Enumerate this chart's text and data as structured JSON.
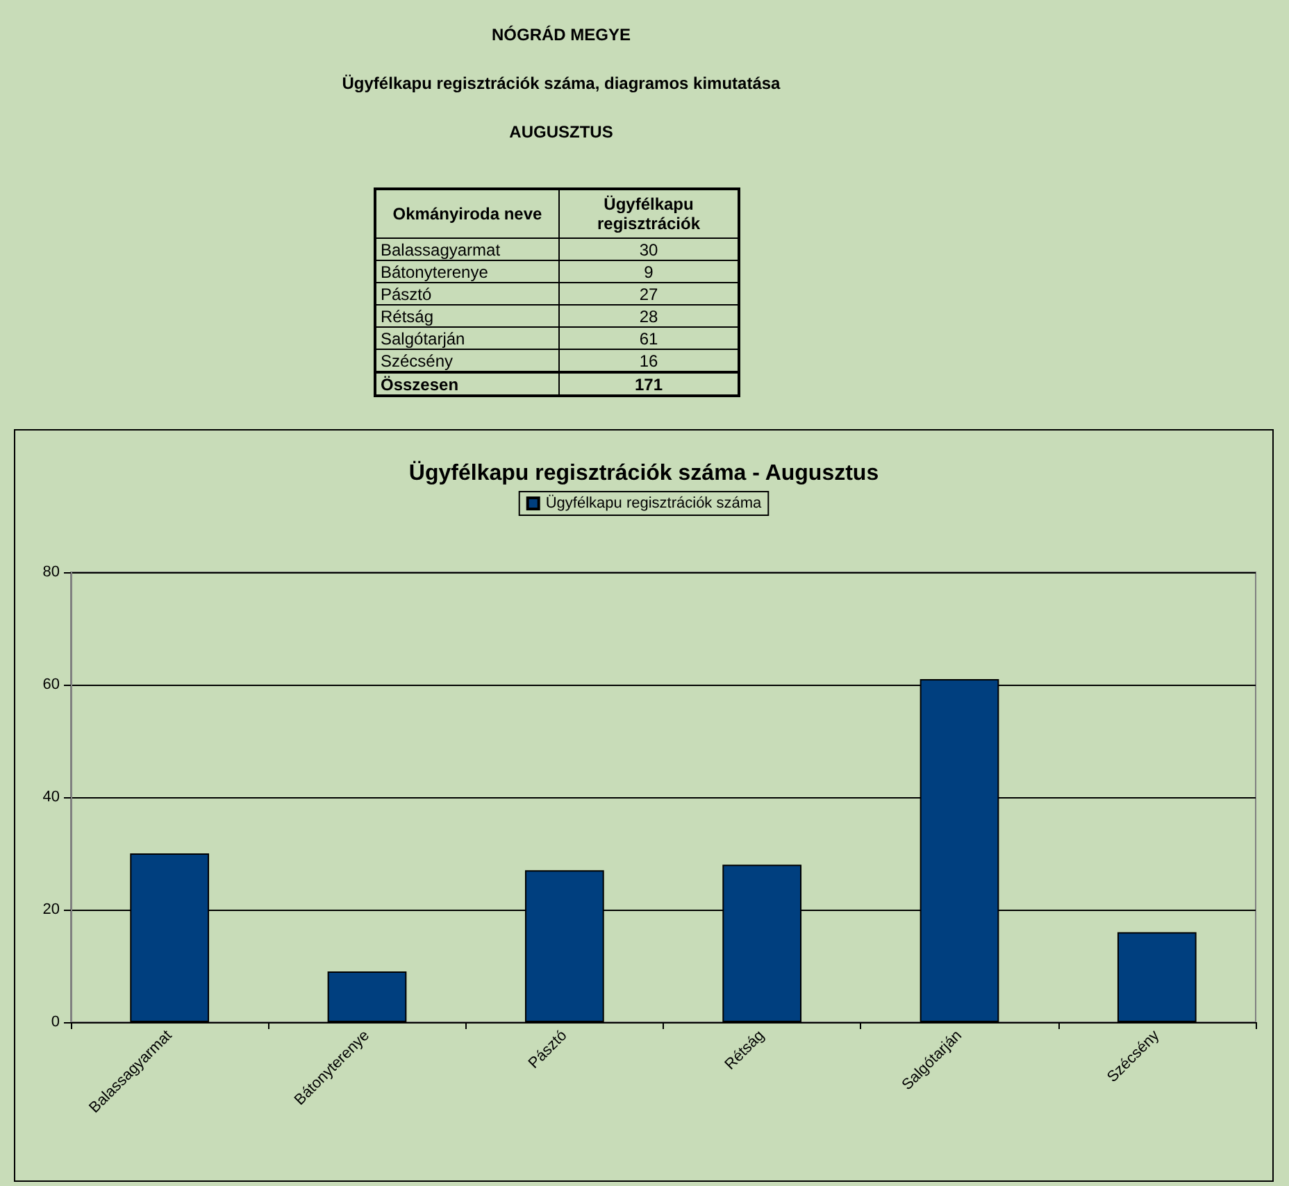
{
  "chart_data": [
    {
      "type": "other",
      "title": "NÓGRÁD MEGYE",
      "subtitle": "Ügyfélkapu regisztrációk száma, diagramos kimutatása",
      "annotations": [
        "AUGUSZTUS",
        "Okmányiroda neve",
        "Ügyfélkapu regisztrációk",
        "Balassagyarmat",
        "30",
        "Bátonyterenye",
        "9",
        "Pásztó",
        "27",
        "Rétság",
        "28",
        "Salgótarján",
        "61",
        "Szécsény",
        "16",
        "Összesen",
        "171"
      ]
    },
    {
      "type": "bar",
      "title": "Ügyfélkapu regisztrációk száma - Augusztus",
      "categories": [
        "Balassagyarmat",
        "Bátonyterenye",
        "Pásztó",
        "Rétság",
        "Salgótarján",
        "Szécsény"
      ],
      "series": [
        {
          "name": "Ügyfélkapu regisztrációk száma",
          "color": "#003f7f",
          "values": [
            30,
            9,
            27,
            28,
            61,
            16
          ]
        }
      ],
      "ylim": [
        0,
        80
      ],
      "yticks": [
        0,
        20,
        40,
        60,
        80
      ],
      "grid": "y",
      "legend": "top"
    }
  ]
}
